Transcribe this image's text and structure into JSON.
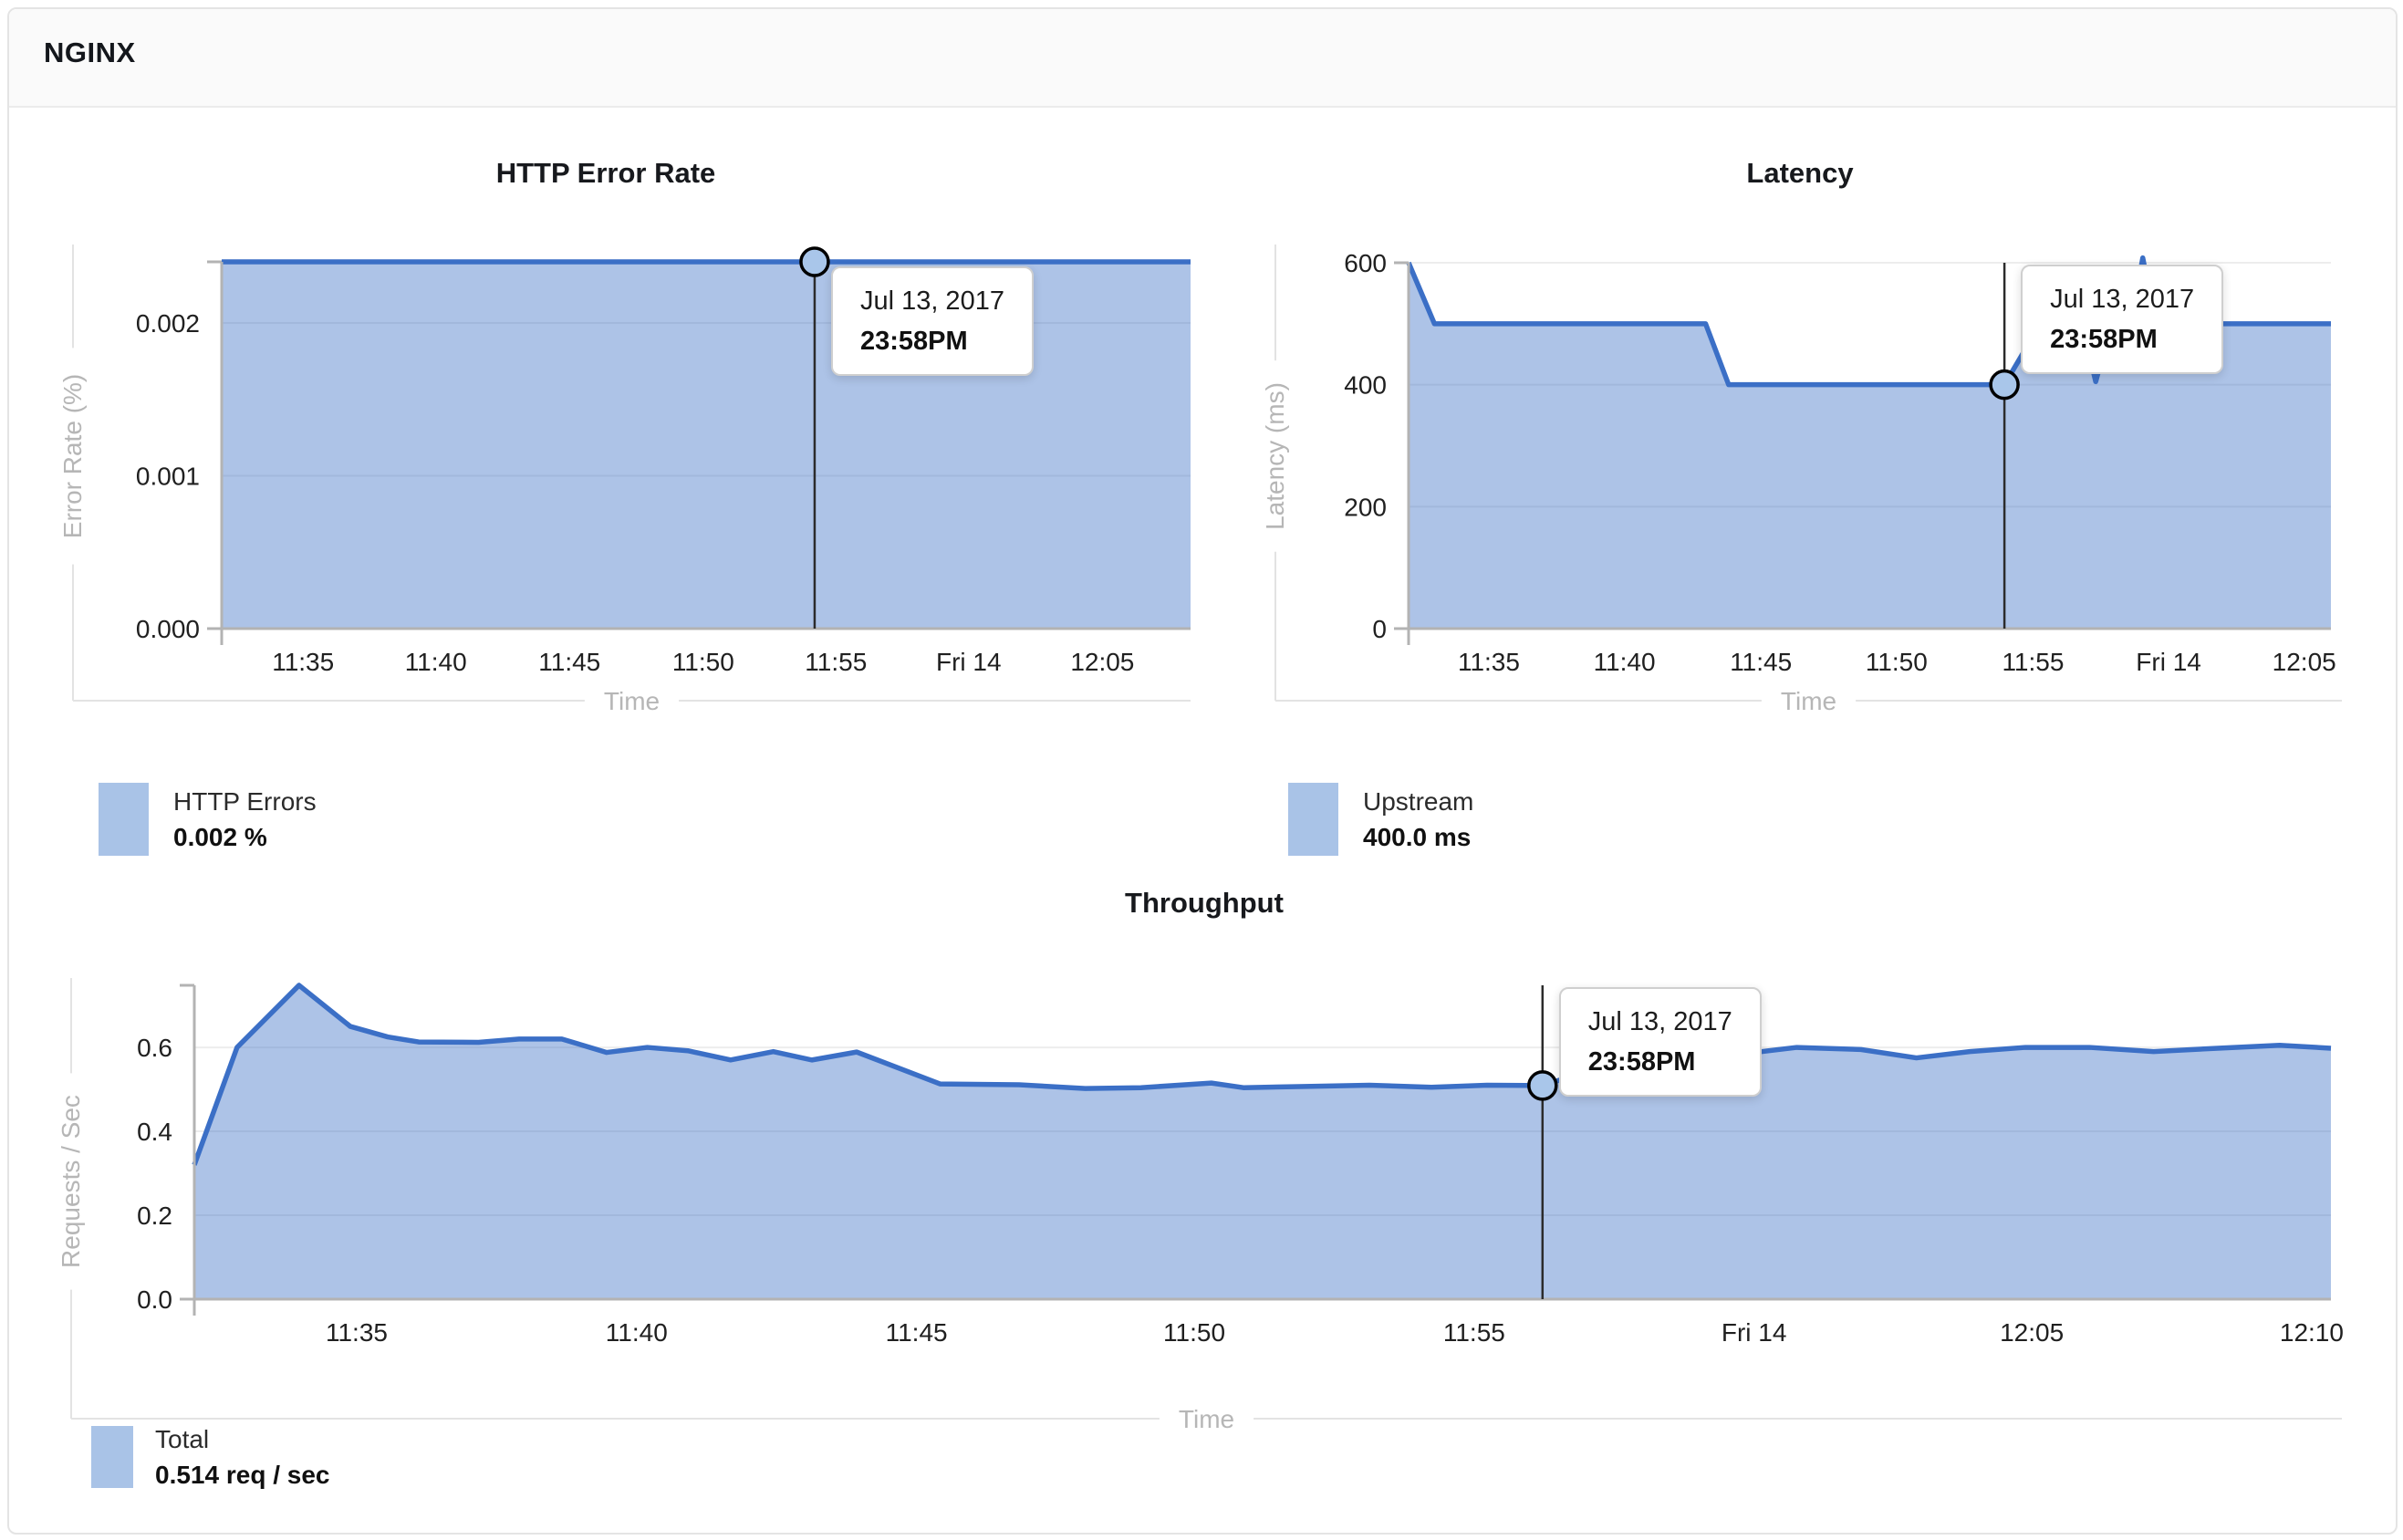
{
  "header": {
    "title": "NGINX"
  },
  "colors": {
    "line": "#3b6fc6",
    "area": "rgba(59,111,198,0.42)",
    "swatch": "#a9c3e7",
    "grid": "#ededed",
    "axis_line": "#b3b3b3",
    "outer_line": "#e3e3e3",
    "axis_title_text": "#b6b6b6",
    "tick_text": "#202020",
    "marker_fill": "#a9c6ea",
    "marker_stroke": "#000000",
    "crosshair": "#2b2b2b"
  },
  "chart_data": [
    {
      "id": "err",
      "type": "area",
      "title": "HTTP Error Rate",
      "xlabel": "Time",
      "ylabel": "Error Rate (%)",
      "ylim": [
        0,
        0.0024
      ],
      "grid": true,
      "legend_position": "below-left",
      "yticks": [
        {
          "value": 0.0,
          "label": "0.000"
        },
        {
          "value": 0.001,
          "label": "0.001"
        },
        {
          "value": 0.002,
          "label": "0.002"
        }
      ],
      "xticks": [
        {
          "pos": 8.4,
          "label": "11:35"
        },
        {
          "pos": 22.1,
          "label": "11:40"
        },
        {
          "pos": 35.9,
          "label": "11:45"
        },
        {
          "pos": 49.7,
          "label": "11:50"
        },
        {
          "pos": 63.4,
          "label": "11:55"
        },
        {
          "pos": 77.1,
          "label": "Fri 14"
        },
        {
          "pos": 90.9,
          "label": "12:05"
        }
      ],
      "series": [
        {
          "name": "HTTP Errors",
          "points": [
            [
              0,
              0.0024
            ],
            [
              100,
              0.0024
            ]
          ]
        }
      ],
      "tooltip": {
        "x_pct": 61.2,
        "value": 0.0024,
        "date": "Jul 13, 2017",
        "time": "23:58PM"
      },
      "legend": {
        "label": "HTTP Errors",
        "value": "0.002 %"
      }
    },
    {
      "id": "lat",
      "type": "area",
      "title": "Latency",
      "xlabel": "Time",
      "ylabel": "Latency (ms)",
      "ylim": [
        0,
        600
      ],
      "grid": true,
      "legend_position": "below-left",
      "yticks": [
        {
          "value": 0,
          "label": "0"
        },
        {
          "value": 200,
          "label": "200"
        },
        {
          "value": 400,
          "label": "400"
        },
        {
          "value": 600,
          "label": "600"
        }
      ],
      "xticks": [
        {
          "pos": 8.7,
          "label": "11:35"
        },
        {
          "pos": 23.4,
          "label": "11:40"
        },
        {
          "pos": 38.2,
          "label": "11:45"
        },
        {
          "pos": 52.9,
          "label": "11:50"
        },
        {
          "pos": 67.7,
          "label": "11:55"
        },
        {
          "pos": 82.4,
          "label": "Fri 14"
        },
        {
          "pos": 97.1,
          "label": "12:05"
        }
      ],
      "series": [
        {
          "name": "Upstream",
          "points": [
            [
              0,
              600
            ],
            [
              2.8,
              500
            ],
            [
              32.2,
              500
            ],
            [
              34.7,
              400
            ],
            [
              64.6,
              400
            ],
            [
              68.5,
              500
            ],
            [
              73,
              500
            ],
            [
              74.5,
              405
            ],
            [
              76.2,
              500
            ],
            [
              78.3,
              500
            ],
            [
              79.6,
              608
            ],
            [
              81,
              500
            ],
            [
              100,
              500
            ]
          ]
        }
      ],
      "tooltip": {
        "x_pct": 64.6,
        "value": 400,
        "date": "Jul 13, 2017",
        "time": "23:58PM"
      },
      "legend": {
        "label": "Upstream",
        "value": "400.0 ms"
      }
    },
    {
      "id": "thr",
      "type": "area",
      "title": "Throughput",
      "xlabel": "Time",
      "ylabel": "Requests / Sec",
      "ylim": [
        0,
        0.748
      ],
      "grid": true,
      "legend_position": "below-left",
      "yticks": [
        {
          "value": 0.0,
          "label": "0.0"
        },
        {
          "value": 0.2,
          "label": "0.2"
        },
        {
          "value": 0.4,
          "label": "0.4"
        },
        {
          "value": 0.6,
          "label": "0.6"
        }
      ],
      "xticks": [
        {
          "pos": 7.6,
          "label": "11:35"
        },
        {
          "pos": 20.7,
          "label": "11:40"
        },
        {
          "pos": 33.8,
          "label": "11:45"
        },
        {
          "pos": 46.8,
          "label": "11:50"
        },
        {
          "pos": 59.9,
          "label": "11:55"
        },
        {
          "pos": 73.0,
          "label": "Fri 14"
        },
        {
          "pos": 86.0,
          "label": "12:05"
        },
        {
          "pos": 99.1,
          "label": "12:10"
        }
      ],
      "series": [
        {
          "name": "Total",
          "points": [
            [
              0,
              0.32
            ],
            [
              2.0,
              0.6
            ],
            [
              4.9,
              0.748
            ],
            [
              7.3,
              0.65
            ],
            [
              9.05,
              0.625
            ],
            [
              10.5,
              0.613
            ],
            [
              13.3,
              0.612
            ],
            [
              15.2,
              0.62
            ],
            [
              17.2,
              0.62
            ],
            [
              19.3,
              0.588
            ],
            [
              21.2,
              0.6
            ],
            [
              23.1,
              0.592
            ],
            [
              25.1,
              0.57
            ],
            [
              27.1,
              0.59
            ],
            [
              28.9,
              0.57
            ],
            [
              31.0,
              0.589
            ],
            [
              34.9,
              0.513
            ],
            [
              38.6,
              0.511
            ],
            [
              41.7,
              0.502
            ],
            [
              44.3,
              0.504
            ],
            [
              47.6,
              0.515
            ],
            [
              49.1,
              0.504
            ],
            [
              52.0,
              0.507
            ],
            [
              55.0,
              0.51
            ],
            [
              57.9,
              0.505
            ],
            [
              60.5,
              0.51
            ],
            [
              63.1,
              0.509
            ],
            [
              65.0,
              0.54
            ],
            [
              68.2,
              0.545
            ],
            [
              70.8,
              0.55
            ],
            [
              72.5,
              0.585
            ],
            [
              75.0,
              0.6
            ],
            [
              78.0,
              0.595
            ],
            [
              80.6,
              0.575
            ],
            [
              83.1,
              0.59
            ],
            [
              85.7,
              0.6
            ],
            [
              88.7,
              0.6
            ],
            [
              91.7,
              0.59
            ],
            [
              94.7,
              0.598
            ],
            [
              97.6,
              0.605
            ],
            [
              100,
              0.598
            ]
          ]
        }
      ],
      "tooltip": {
        "x_pct": 63.1,
        "value": 0.509,
        "date": "Jul 13, 2017",
        "time": "23:58PM"
      },
      "legend": {
        "label": "Total",
        "value": "0.514 req / sec"
      }
    }
  ]
}
